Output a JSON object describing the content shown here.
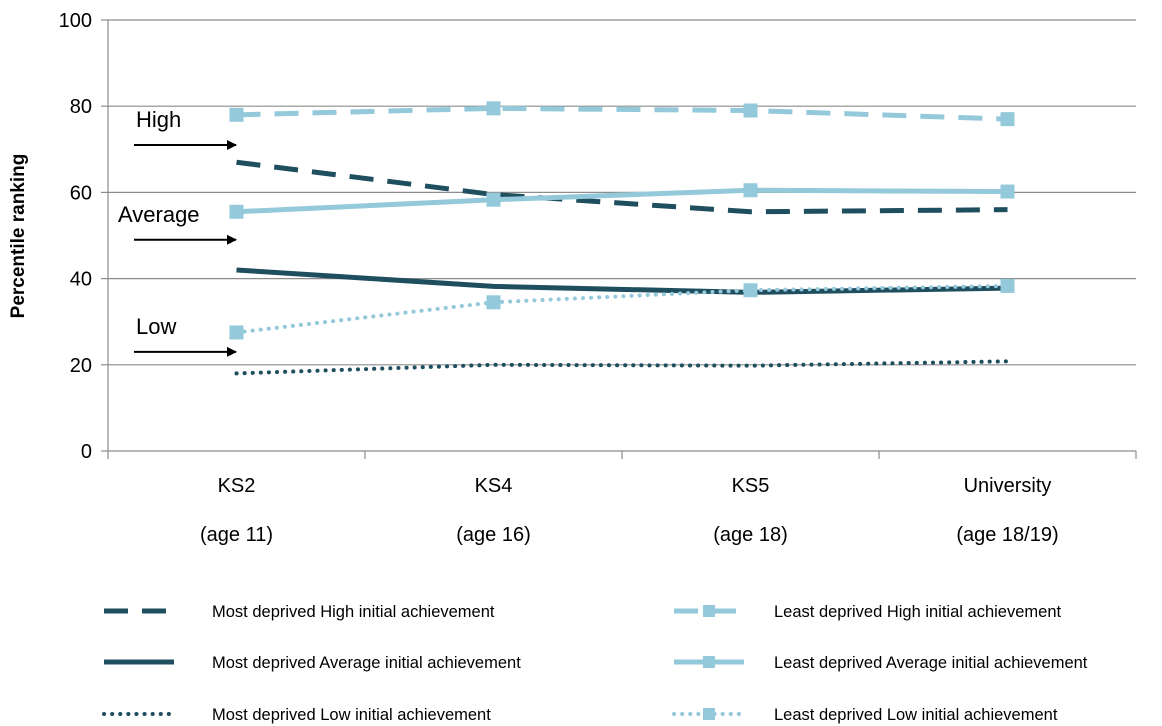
{
  "chart_data": {
    "type": "line",
    "ylabel": "Percentile ranking",
    "xlabel": "",
    "ylim": [
      0,
      100
    ],
    "yticks": [
      0,
      20,
      40,
      60,
      80,
      100
    ],
    "grid": true,
    "categories": [
      {
        "line1": "KS2",
        "line2": "(age 11)"
      },
      {
        "line1": "KS4",
        "line2": "(age 16)"
      },
      {
        "line1": "KS5",
        "line2": "(age 18)"
      },
      {
        "line1": "University",
        "line2": "(age 18/19)"
      }
    ],
    "annotations": [
      {
        "text": "High",
        "value": 71
      },
      {
        "text": "Average",
        "value": 49
      },
      {
        "text": "Low",
        "value": 23
      }
    ],
    "legend_position": "bottom",
    "series": [
      {
        "name": "Most deprived High initial achievement",
        "values": [
          67,
          59.5,
          55.5,
          56
        ],
        "color": "#1f4e5f",
        "style": "dashed",
        "marker": false
      },
      {
        "name": "Least deprived High initial achievement",
        "values": [
          78,
          79.5,
          79,
          77
        ],
        "color": "#93c9da",
        "style": "dashed",
        "marker": true
      },
      {
        "name": "Most deprived Average initial achievement",
        "values": [
          42,
          38.2,
          36.8,
          37.8
        ],
        "color": "#1f4e5f",
        "style": "solid",
        "marker": false
      },
      {
        "name": "Least deprived Average initial achievement",
        "values": [
          55.5,
          58.3,
          60.5,
          60.2
        ],
        "color": "#93c9da",
        "style": "solid",
        "marker": true
      },
      {
        "name": "Most deprived Low initial achievement",
        "values": [
          18,
          20,
          19.8,
          20.8
        ],
        "color": "#1f4e5f",
        "style": "dotted",
        "marker": false
      },
      {
        "name": "Least deprived Low initial achievement",
        "values": [
          27.5,
          34.5,
          37.3,
          38.3
        ],
        "color": "#93c9da",
        "style": "dotted",
        "marker": true
      }
    ]
  }
}
